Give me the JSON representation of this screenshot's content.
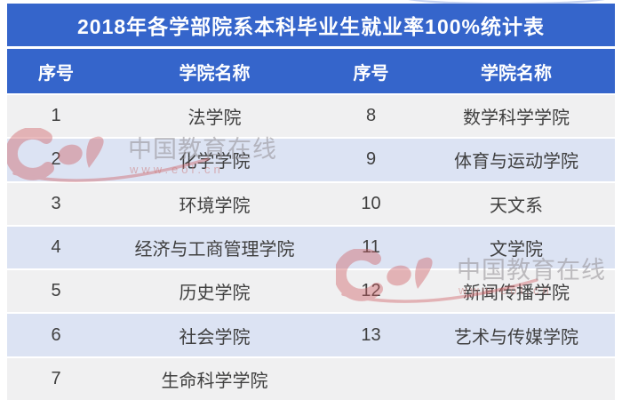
{
  "title": "2018年各学部院系本科毕业生就业率100%统计表",
  "table": {
    "headers": [
      "序号",
      "学院名称",
      "序号",
      "学院名称"
    ],
    "rows": [
      [
        "1",
        "法学院",
        "8",
        "数学科学学院"
      ],
      [
        "2",
        "化学学院",
        "9",
        "体育与运动学院"
      ],
      [
        "3",
        "环境学院",
        "10",
        "天文系"
      ],
      [
        "4",
        "经济与工商管理学院",
        "11",
        "文学院"
      ],
      [
        "5",
        "历史学院",
        "12",
        "新闻传播学院"
      ],
      [
        "6",
        "社会学院",
        "13",
        "艺术与传媒学院"
      ],
      [
        "7",
        "生命科学学院",
        "",
        ""
      ]
    ]
  },
  "watermark": {
    "site_name": "中国教育在线",
    "site_url": "www.eol.cn"
  },
  "colors": {
    "header_blue": "#3565cb",
    "row_gray": "#f0f0f1",
    "row_blue": "#dce3f3",
    "body_text": "#3f3f3f",
    "watermark_red": "#cf5f63"
  }
}
